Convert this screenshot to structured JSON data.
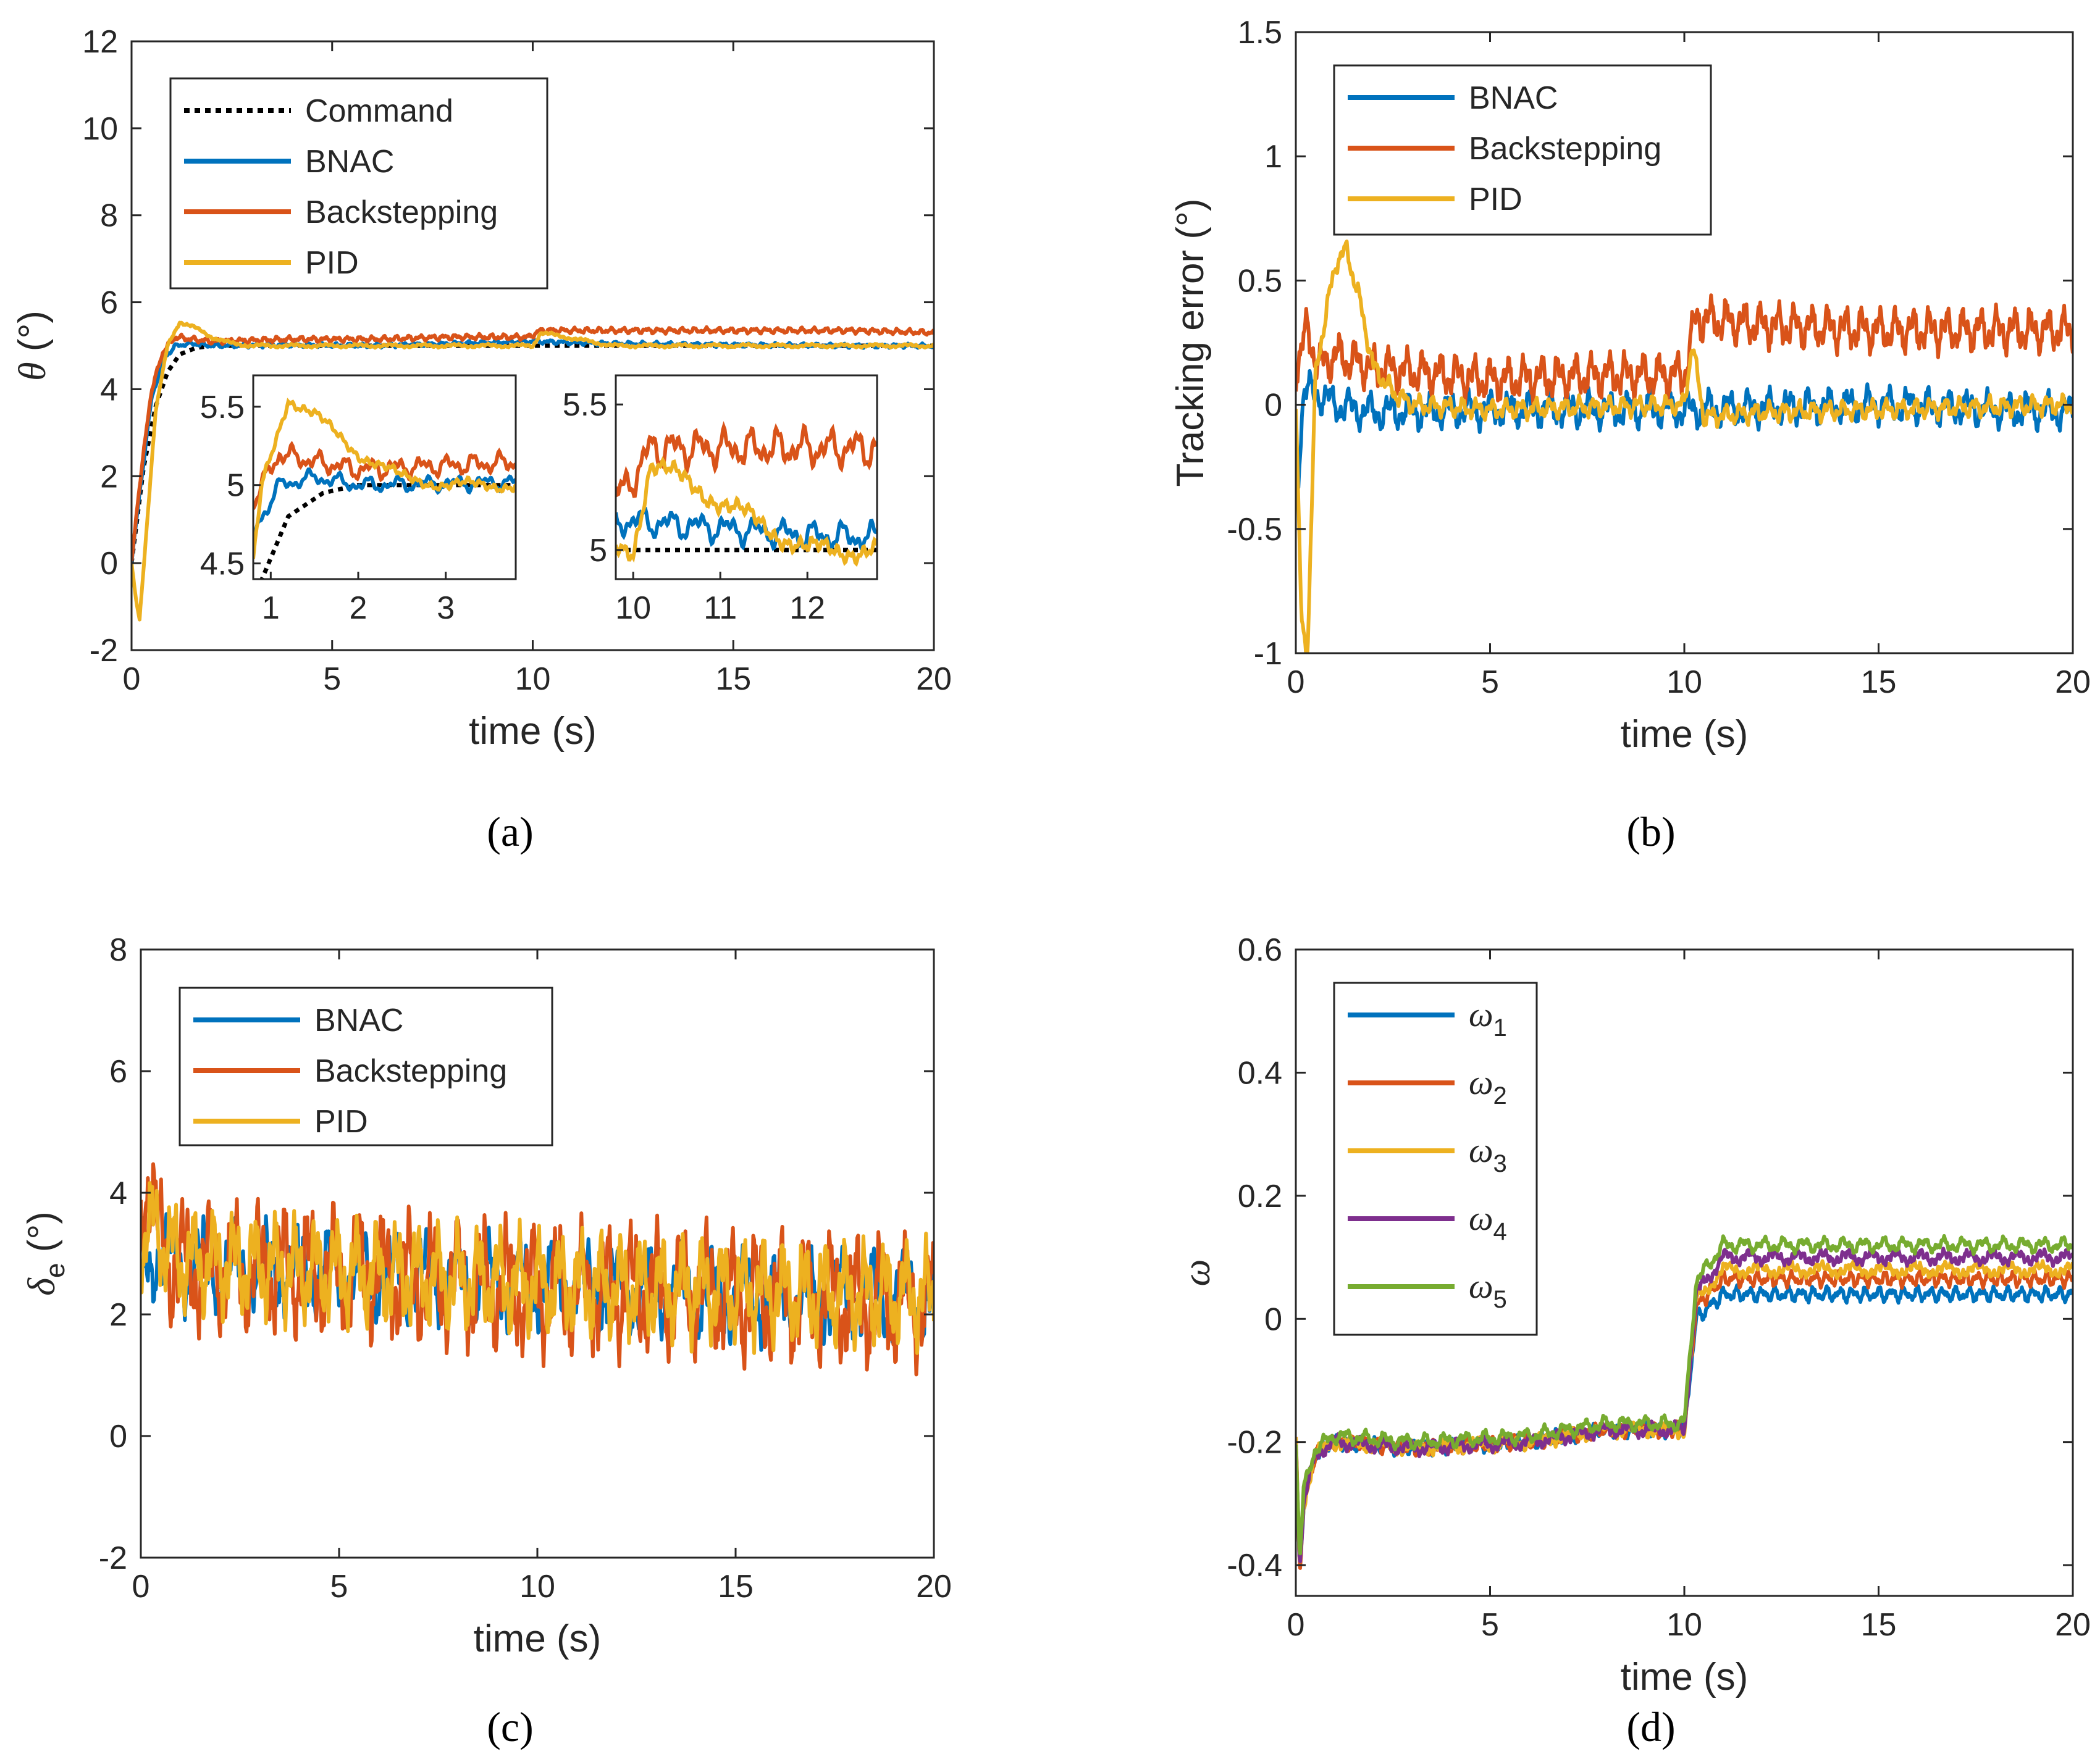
{
  "colors": {
    "blue": "#0072BD",
    "orange": "#D95319",
    "yellow": "#EDB120",
    "purple": "#7E2F8E",
    "green": "#77AC30",
    "command": "#000000",
    "axis": "#262626"
  },
  "chart_data": [
    {
      "panel": "a",
      "type": "line",
      "caption": "(a)",
      "xlabel": "time (s)",
      "ylabel_symbol": "θ",
      "ylabel_unit": " (°)",
      "xlim": [
        0,
        20
      ],
      "ylim": [
        -2,
        12
      ],
      "xticks": [
        "0",
        "5",
        "10",
        "15",
        "20"
      ],
      "yticks": [
        "-2",
        "0",
        "2",
        "4",
        "6",
        "8",
        "10",
        "12"
      ],
      "legend": [
        "Command",
        "BNAC",
        "Backstepping",
        "PID"
      ],
      "series": [
        {
          "name": "Command",
          "style": "dotted",
          "x": [
            0,
            0.3,
            0.6,
            0.9,
            1.2,
            1.6,
            2.0,
            3.0,
            20
          ],
          "y": [
            0,
            2.2,
            3.6,
            4.4,
            4.8,
            4.95,
            5.0,
            5.0,
            5.0
          ]
        },
        {
          "name": "BNAC",
          "x": [
            0,
            0.2,
            0.5,
            0.8,
            1.1,
            1.5,
            2,
            4,
            6,
            8,
            10,
            12,
            15,
            18,
            20
          ],
          "y": [
            0,
            1.6,
            3.8,
            4.7,
            5.0,
            5.05,
            5.0,
            5.02,
            5.0,
            5.05,
            5.1,
            5.05,
            5.02,
            5.0,
            5.0
          ],
          "noise": 0.06
        },
        {
          "name": "Backstepping",
          "x": [
            0,
            0.2,
            0.5,
            0.8,
            1.1,
            1.5,
            2,
            4,
            6,
            8,
            9.9,
            10.2,
            12,
            15,
            18,
            20
          ],
          "y": [
            0,
            1.8,
            4.0,
            4.9,
            5.2,
            5.15,
            5.1,
            5.15,
            5.15,
            5.2,
            5.2,
            5.35,
            5.35,
            5.35,
            5.35,
            5.3
          ],
          "noise": 0.08
        },
        {
          "name": "PID",
          "x": [
            0,
            0.1,
            0.2,
            0.35,
            0.6,
            0.9,
            1.2,
            1.5,
            2.0,
            2.5,
            3,
            5,
            8,
            10,
            10.2,
            12,
            15,
            18,
            20
          ],
          "y": [
            0,
            -0.8,
            -1.3,
            0.5,
            3.5,
            5.0,
            5.55,
            5.45,
            5.2,
            5.05,
            5.0,
            5.0,
            5.0,
            5.0,
            5.3,
            5.0,
            5.0,
            5.0,
            5.0
          ],
          "noise": 0.05
        }
      ],
      "insets": [
        {
          "xlim": [
            0.8,
            3.8
          ],
          "ylim": [
            4.4,
            5.7
          ],
          "xticks": [
            "1",
            "2",
            "3"
          ],
          "yticks": [
            "4.5",
            "5",
            "5.5"
          ]
        },
        {
          "xlim": [
            9.8,
            12.8
          ],
          "ylim": [
            4.9,
            5.6
          ],
          "xticks": [
            "10",
            "11",
            "12"
          ],
          "yticks": [
            "5",
            "5.5"
          ]
        }
      ]
    },
    {
      "panel": "b",
      "type": "line",
      "caption": "(b)",
      "xlabel": "time (s)",
      "ylabel": "Tracking error (°)",
      "xlim": [
        0,
        20
      ],
      "ylim": [
        -1,
        1.5
      ],
      "xticks": [
        "0",
        "5",
        "10",
        "15",
        "20"
      ],
      "yticks": [
        "-1",
        "-0.5",
        "0",
        "0.5",
        "1",
        "1.5"
      ],
      "legend": [
        "BNAC",
        "Backstepping",
        "PID"
      ],
      "series": [
        {
          "name": "BNAC",
          "x": [
            0,
            0.2,
            0.5,
            1,
            2,
            5,
            10,
            15,
            20
          ],
          "y": [
            -0.4,
            0.05,
            0.05,
            0.0,
            -0.03,
            -0.02,
            -0.02,
            0.0,
            -0.03
          ],
          "noise": 0.09
        },
        {
          "name": "Backstepping",
          "x": [
            0,
            0.3,
            0.6,
            1,
            2,
            5,
            8,
            10,
            10.3,
            12,
            15,
            18,
            20
          ],
          "y": [
            0.15,
            0.3,
            0.15,
            0.2,
            0.15,
            0.1,
            0.12,
            0.12,
            0.35,
            0.32,
            0.3,
            0.3,
            0.3
          ],
          "noise": 0.11
        },
        {
          "name": "PID",
          "x": [
            0,
            0.15,
            0.3,
            0.5,
            0.8,
            1.1,
            1.3,
            1.6,
            2,
            2.5,
            3,
            5,
            10,
            10.2,
            10.5,
            12,
            15,
            20
          ],
          "y": [
            0,
            -0.9,
            -1.0,
            0.1,
            0.4,
            0.6,
            0.62,
            0.45,
            0.15,
            0.05,
            0.0,
            -0.02,
            0.0,
            0.25,
            -0.05,
            -0.03,
            -0.02,
            0.0
          ],
          "noise": 0.05
        }
      ]
    },
    {
      "panel": "c",
      "type": "line",
      "caption": "(c)",
      "xlabel": "time (s)",
      "ylabel_symbol": "δ",
      "ylabel_sub": "e",
      "ylabel_unit": " (°)",
      "xlim": [
        0,
        20
      ],
      "ylim": [
        -2,
        8
      ],
      "xticks": [
        "0",
        "5",
        "10",
        "15",
        "20"
      ],
      "yticks": [
        "-2",
        "0",
        "2",
        "4",
        "6",
        "8"
      ],
      "legend": [
        "BNAC",
        "Backstepping",
        "PID"
      ],
      "series": [
        {
          "name": "BNAC",
          "x": [
            0,
            0.3,
            1,
            5,
            10,
            15,
            20
          ],
          "y": [
            3.0,
            3.0,
            2.8,
            2.7,
            2.5,
            2.3,
            2.3
          ],
          "noise": 0.9
        },
        {
          "name": "Backstepping",
          "x": [
            0,
            0.2,
            0.5,
            1,
            5,
            10,
            14.3,
            15,
            20
          ],
          "y": [
            3.5,
            4.5,
            3.0,
            2.8,
            2.7,
            2.4,
            2.4,
            2.3,
            2.2
          ],
          "noise": 1.3
        },
        {
          "name": "PID",
          "x": [
            0,
            0.2,
            1,
            5,
            10,
            15,
            20
          ],
          "y": [
            3.2,
            3.5,
            2.9,
            2.7,
            2.5,
            2.4,
            2.3
          ],
          "noise": 1.05
        }
      ]
    },
    {
      "panel": "d",
      "type": "line",
      "caption": "(d)",
      "xlabel": "time (s)",
      "ylabel": "ω",
      "xlim": [
        0,
        20
      ],
      "ylim": [
        -0.45,
        0.6
      ],
      "xticks": [
        "0",
        "5",
        "10",
        "15",
        "20"
      ],
      "yticks": [
        "-0.4",
        "-0.2",
        "0",
        "0.2",
        "0.4",
        "0.6"
      ],
      "legend_symbol": "ω",
      "legend_subs": [
        "1",
        "2",
        "3",
        "4",
        "5"
      ],
      "series": [
        {
          "name": "ω1",
          "x": [
            0,
            0.1,
            0.2,
            0.5,
            1,
            3,
            6,
            8,
            10,
            10.3,
            11,
            15,
            20
          ],
          "y": [
            -0.2,
            -0.41,
            -0.3,
            -0.22,
            -0.2,
            -0.21,
            -0.2,
            -0.18,
            -0.18,
            0.0,
            0.04,
            0.04,
            0.04
          ],
          "noise": 0.015
        },
        {
          "name": "ω2",
          "x": [
            0,
            0.1,
            0.2,
            0.5,
            1,
            3,
            6,
            8,
            10,
            10.3,
            11,
            15,
            20
          ],
          "y": [
            -0.2,
            -0.405,
            -0.3,
            -0.22,
            -0.2,
            -0.21,
            -0.2,
            -0.18,
            -0.18,
            0.02,
            0.065,
            0.065,
            0.065
          ],
          "noise": 0.015
        },
        {
          "name": "ω3",
          "x": [
            0,
            0.1,
            0.2,
            0.5,
            1,
            3,
            6,
            8,
            10,
            10.3,
            11,
            15,
            20
          ],
          "y": [
            -0.2,
            -0.4,
            -0.3,
            -0.22,
            -0.2,
            -0.21,
            -0.2,
            -0.18,
            -0.18,
            0.03,
            0.08,
            0.08,
            0.08
          ],
          "noise": 0.015
        },
        {
          "name": "ω4",
          "x": [
            0,
            0.1,
            0.2,
            0.5,
            1,
            3,
            6,
            8,
            10,
            10.3,
            11,
            15,
            20
          ],
          "y": [
            -0.2,
            -0.4,
            -0.3,
            -0.22,
            -0.2,
            -0.21,
            -0.2,
            -0.18,
            -0.18,
            0.04,
            0.1,
            0.1,
            0.1
          ],
          "noise": 0.015
        },
        {
          "name": "ω5",
          "x": [
            0,
            0.1,
            0.2,
            0.5,
            1,
            3,
            6,
            8,
            10,
            10.3,
            11,
            15,
            20
          ],
          "y": [
            -0.2,
            -0.39,
            -0.28,
            -0.21,
            -0.19,
            -0.2,
            -0.19,
            -0.17,
            -0.17,
            0.06,
            0.12,
            0.12,
            0.12
          ],
          "noise": 0.015
        }
      ]
    }
  ]
}
